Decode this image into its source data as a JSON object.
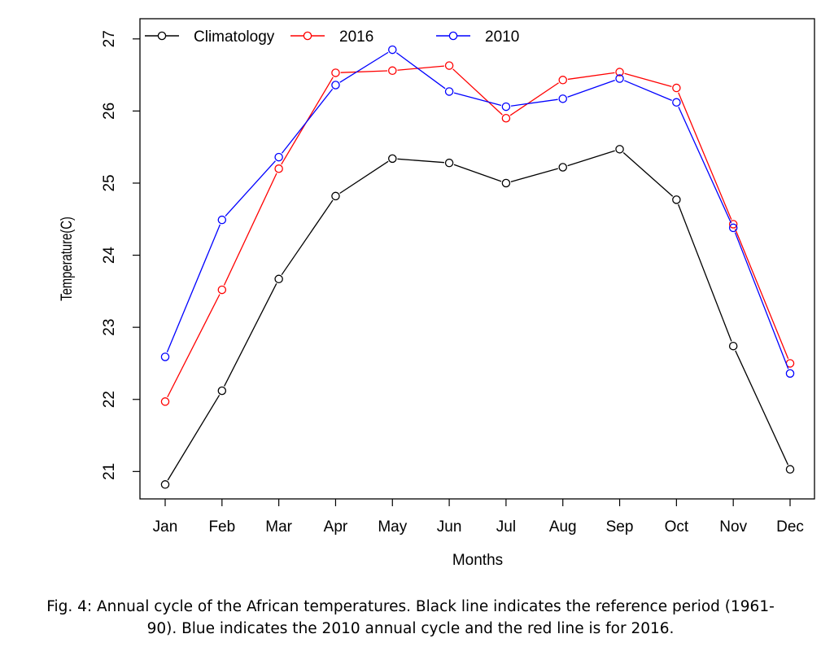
{
  "chart_data": {
    "type": "line",
    "categories": [
      "Jan",
      "Feb",
      "Mar",
      "Apr",
      "May",
      "Jun",
      "Jul",
      "Aug",
      "Sep",
      "Oct",
      "Nov",
      "Dec"
    ],
    "series": [
      {
        "name": "Climatology",
        "color": "#000000",
        "values": [
          20.82,
          22.12,
          23.67,
          24.82,
          25.34,
          25.28,
          25.0,
          25.22,
          25.47,
          24.77,
          22.74,
          21.03
        ]
      },
      {
        "name": "2016",
        "color": "#ff0000",
        "values": [
          21.97,
          23.52,
          25.2,
          26.53,
          26.56,
          26.63,
          25.9,
          26.43,
          26.54,
          26.32,
          24.43,
          22.5
        ]
      },
      {
        "name": "2010",
        "color": "#0000ff",
        "values": [
          22.59,
          24.49,
          25.36,
          26.36,
          26.85,
          26.27,
          26.06,
          26.17,
          26.45,
          26.12,
          24.38,
          22.36
        ]
      }
    ],
    "xlabel": "Months",
    "ylabel": "Temperature(C)",
    "yticks": [
      21,
      22,
      23,
      24,
      25,
      26,
      27
    ],
    "ylim": [
      20.62,
      27.28
    ],
    "grid": false,
    "legend_position": "top-left"
  },
  "caption": {
    "line1": "Fig. 4:  Annual cycle of the African temperatures. Black line indicates the reference period (1961-",
    "line2": "90). Blue indicates the 2010 annual cycle and the red line is for 2016."
  }
}
